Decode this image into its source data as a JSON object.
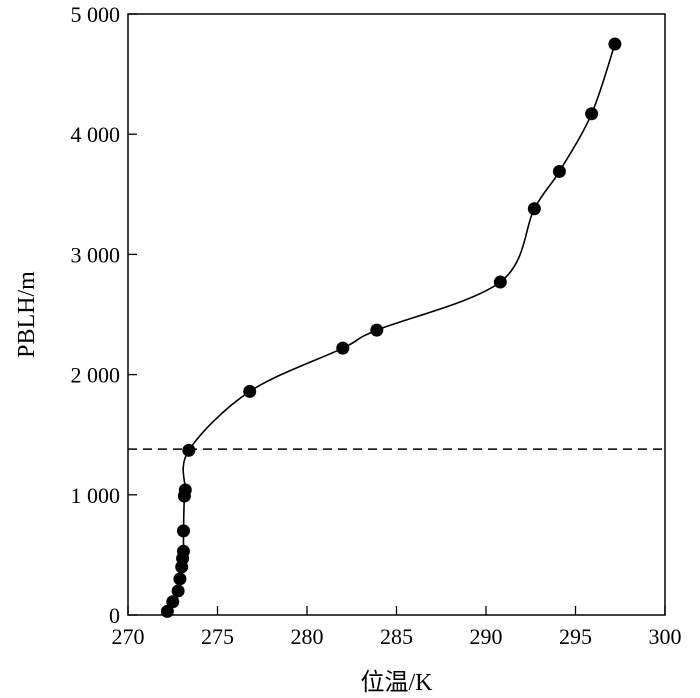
{
  "chart_data": {
    "type": "scatter",
    "xlabel": "位温/K",
    "ylabel": "PBLH/m",
    "xlim": [
      270,
      300
    ],
    "ylim": [
      0,
      5000
    ],
    "x_ticks": [
      270,
      275,
      280,
      285,
      290,
      295,
      300
    ],
    "x_tick_labels": [
      "270",
      "275",
      "280",
      "285",
      "290",
      "295",
      "300"
    ],
    "y_ticks": [
      0,
      1000,
      2000,
      3000,
      4000,
      5000
    ],
    "y_tick_labels": [
      "0",
      "1 000",
      "2 000",
      "3 000",
      "4 000",
      "5 000"
    ],
    "grid": false,
    "reference_line": {
      "y": 1380,
      "style": "dashed"
    },
    "series": [
      {
        "marker": "filled-circle",
        "connected": "smooth-line",
        "points": [
          {
            "x": 272.2,
            "y": 30
          },
          {
            "x": 272.5,
            "y": 110
          },
          {
            "x": 272.8,
            "y": 200
          },
          {
            "x": 272.9,
            "y": 300
          },
          {
            "x": 273.0,
            "y": 400
          },
          {
            "x": 273.05,
            "y": 470
          },
          {
            "x": 273.1,
            "y": 530
          },
          {
            "x": 273.1,
            "y": 700
          },
          {
            "x": 273.15,
            "y": 990
          },
          {
            "x": 273.2,
            "y": 1040
          },
          {
            "x": 273.4,
            "y": 1370
          },
          {
            "x": 276.8,
            "y": 1860
          },
          {
            "x": 282.0,
            "y": 2220
          },
          {
            "x": 283.9,
            "y": 2370
          },
          {
            "x": 290.8,
            "y": 2770
          },
          {
            "x": 292.7,
            "y": 3380
          },
          {
            "x": 294.1,
            "y": 3690
          },
          {
            "x": 295.9,
            "y": 4170
          },
          {
            "x": 297.2,
            "y": 4750
          }
        ]
      }
    ]
  }
}
